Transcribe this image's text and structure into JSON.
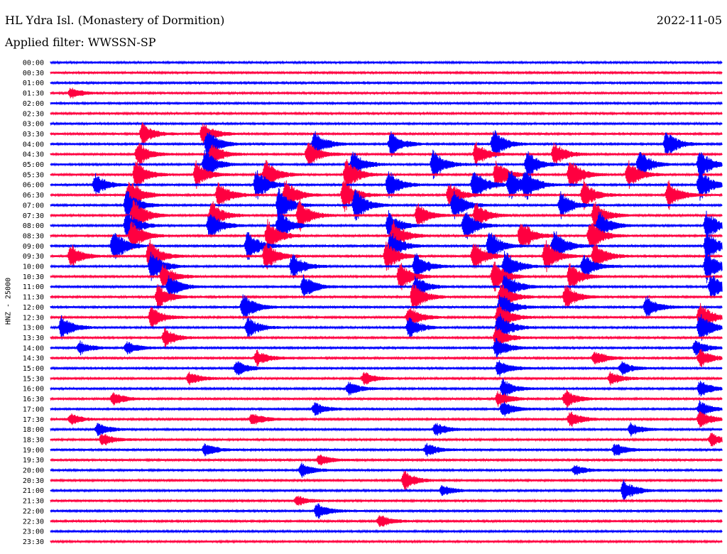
{
  "header": {
    "station": "HL Ydra Isl. (Monastery of Dormition)",
    "date": "2022-11-05",
    "filter": "Applied filter: WWSSN-SP",
    "channel": "HNZ - 25000"
  },
  "chart_data": {
    "type": "line",
    "title": "HL Ydra Isl. (Monastery of Dormition)",
    "ylabel": "HNZ - 25000",
    "x_unit": "minutes within 30-minute trace (0-30)",
    "colors": [
      "#0000ff",
      "#ff0040"
    ],
    "grid": false,
    "series": [
      {
        "name": "00:00",
        "events": []
      },
      {
        "name": "00:30",
        "events": []
      },
      {
        "name": "01:00",
        "events": []
      },
      {
        "name": "01:30",
        "events": [
          {
            "x": 0.9,
            "peak": -8
          }
        ]
      },
      {
        "name": "02:00",
        "events": []
      },
      {
        "name": "02:30",
        "events": []
      },
      {
        "name": "03:00",
        "events": []
      },
      {
        "name": "03:30",
        "events": [
          {
            "x": 4.1,
            "peak": 16
          },
          {
            "x": 6.8,
            "peak": 18
          }
        ]
      },
      {
        "name": "04:00",
        "events": [
          {
            "x": 7.0,
            "peak": 22
          },
          {
            "x": 11.8,
            "peak": 20
          },
          {
            "x": 15.2,
            "peak": 18
          },
          {
            "x": 19.8,
            "peak": 22
          },
          {
            "x": 27.5,
            "peak": 20
          }
        ]
      },
      {
        "name": "04:30",
        "events": [
          {
            "x": 3.9,
            "peak": 18
          },
          {
            "x": 7.2,
            "peak": 16
          },
          {
            "x": 11.5,
            "peak": 20
          },
          {
            "x": 19.0,
            "peak": 18
          },
          {
            "x": 22.5,
            "peak": 18
          }
        ]
      },
      {
        "name": "05:00",
        "events": [
          {
            "x": 6.9,
            "peak": 22
          },
          {
            "x": 13.5,
            "peak": 20
          },
          {
            "x": 17.1,
            "peak": 22
          },
          {
            "x": 21.3,
            "peak": 20
          },
          {
            "x": 26.3,
            "peak": 22
          },
          {
            "x": 29.0,
            "peak": 22
          }
        ]
      },
      {
        "name": "05:30",
        "events": [
          {
            "x": 3.8,
            "peak": 22
          },
          {
            "x": 6.5,
            "peak": 20
          },
          {
            "x": 9.6,
            "peak": 22
          },
          {
            "x": 13.2,
            "peak": 24
          },
          {
            "x": 19.9,
            "peak": 22
          },
          {
            "x": 23.2,
            "peak": 24
          },
          {
            "x": 25.8,
            "peak": 22
          }
        ]
      },
      {
        "name": "06:00",
        "events": [
          {
            "x": 2.0,
            "peak": 16
          },
          {
            "x": 9.2,
            "peak": 24
          },
          {
            "x": 15.1,
            "peak": 22
          },
          {
            "x": 18.9,
            "peak": 26
          },
          {
            "x": 20.5,
            "peak": 24
          },
          {
            "x": 21.2,
            "peak": 22
          },
          {
            "x": 29.0,
            "peak": 24
          }
        ]
      },
      {
        "name": "06:30",
        "events": [
          {
            "x": 3.5,
            "peak": 26
          },
          {
            "x": 7.5,
            "peak": 22
          },
          {
            "x": 10.5,
            "peak": 24
          },
          {
            "x": 13.1,
            "peak": 26
          },
          {
            "x": 17.8,
            "peak": 20
          },
          {
            "x": 23.8,
            "peak": 22
          },
          {
            "x": 27.6,
            "peak": 22
          }
        ]
      },
      {
        "name": "07:00",
        "events": [
          {
            "x": 3.4,
            "peak": 24
          },
          {
            "x": 10.2,
            "peak": 24
          },
          {
            "x": 13.6,
            "peak": 26
          },
          {
            "x": 18.0,
            "peak": 22
          },
          {
            "x": 22.8,
            "peak": 20
          }
        ]
      },
      {
        "name": "07:30",
        "events": [
          {
            "x": 3.7,
            "peak": 26
          },
          {
            "x": 7.2,
            "peak": 22
          },
          {
            "x": 11.1,
            "peak": 24
          },
          {
            "x": 16.4,
            "peak": 18
          },
          {
            "x": 19.0,
            "peak": 20
          },
          {
            "x": 24.3,
            "peak": 22
          }
        ]
      },
      {
        "name": "08:00",
        "events": [
          {
            "x": 3.4,
            "peak": 24
          },
          {
            "x": 7.1,
            "peak": 22
          },
          {
            "x": 10.2,
            "peak": 24
          },
          {
            "x": 15.1,
            "peak": 22
          },
          {
            "x": 18.5,
            "peak": 24
          },
          {
            "x": 24.5,
            "peak": 22
          },
          {
            "x": 29.3,
            "peak": 22
          }
        ]
      },
      {
        "name": "08:30",
        "events": [
          {
            "x": 3.6,
            "peak": 24
          },
          {
            "x": 9.7,
            "peak": 24
          },
          {
            "x": 15.3,
            "peak": 24
          },
          {
            "x": 21.0,
            "peak": 26
          },
          {
            "x": 24.1,
            "peak": 24
          }
        ]
      },
      {
        "name": "09:00",
        "events": [
          {
            "x": 2.8,
            "peak": 26
          },
          {
            "x": 8.8,
            "peak": 24
          },
          {
            "x": 15.2,
            "peak": 22
          },
          {
            "x": 19.6,
            "peak": 24
          },
          {
            "x": 22.5,
            "peak": 26
          },
          {
            "x": 29.3,
            "peak": 24
          }
        ]
      },
      {
        "name": "09:30",
        "events": [
          {
            "x": 0.9,
            "peak": 18
          },
          {
            "x": 4.4,
            "peak": 26
          },
          {
            "x": 9.6,
            "peak": 24
          },
          {
            "x": 15.0,
            "peak": 22
          },
          {
            "x": 18.9,
            "peak": 24
          },
          {
            "x": 22.1,
            "peak": 26
          },
          {
            "x": 24.3,
            "peak": 22
          }
        ]
      },
      {
        "name": "10:00",
        "events": [
          {
            "x": 4.5,
            "peak": 22
          },
          {
            "x": 10.8,
            "peak": 20
          },
          {
            "x": 16.3,
            "peak": 22
          },
          {
            "x": 20.3,
            "peak": 26
          },
          {
            "x": 23.8,
            "peak": 20
          },
          {
            "x": 29.3,
            "peak": 24
          }
        ]
      },
      {
        "name": "10:30",
        "events": [
          {
            "x": 5.0,
            "peak": 20
          },
          {
            "x": 15.6,
            "peak": 22
          },
          {
            "x": 19.8,
            "peak": 24
          },
          {
            "x": 23.2,
            "peak": 20
          }
        ]
      },
      {
        "name": "11:00",
        "events": [
          {
            "x": 5.3,
            "peak": 18
          },
          {
            "x": 11.3,
            "peak": 18
          },
          {
            "x": 16.3,
            "peak": 18
          },
          {
            "x": 20.3,
            "peak": 24
          },
          {
            "x": 29.5,
            "peak": 22
          }
        ]
      },
      {
        "name": "11:30",
        "events": [
          {
            "x": 4.8,
            "peak": 18
          },
          {
            "x": 16.2,
            "peak": 22
          },
          {
            "x": 20.1,
            "peak": 22
          },
          {
            "x": 23.0,
            "peak": 18
          }
        ]
      },
      {
        "name": "12:00",
        "events": [
          {
            "x": 8.6,
            "peak": 22
          },
          {
            "x": 20.1,
            "peak": 24
          },
          {
            "x": 26.6,
            "peak": 18
          }
        ]
      },
      {
        "name": "12:30",
        "events": [
          {
            "x": 4.5,
            "peak": 16
          },
          {
            "x": 16.0,
            "peak": 18
          },
          {
            "x": 20.0,
            "peak": 22
          },
          {
            "x": 29.0,
            "peak": 24
          }
        ]
      },
      {
        "name": "13:00",
        "events": [
          {
            "x": 0.5,
            "peak": 18
          },
          {
            "x": 8.8,
            "peak": 16
          },
          {
            "x": 16.0,
            "peak": 16
          },
          {
            "x": 20.0,
            "peak": 24
          },
          {
            "x": 29.0,
            "peak": 22
          }
        ]
      },
      {
        "name": "13:30",
        "events": [
          {
            "x": 5.1,
            "peak": 14
          },
          {
            "x": 19.9,
            "peak": 18
          }
        ]
      },
      {
        "name": "14:00",
        "events": [
          {
            "x": 1.3,
            "peak": 10
          },
          {
            "x": 3.4,
            "peak": 10
          },
          {
            "x": 19.9,
            "peak": 16
          },
          {
            "x": 28.8,
            "peak": 12
          }
        ]
      },
      {
        "name": "14:30",
        "events": [
          {
            "x": 9.2,
            "peak": 12
          },
          {
            "x": 24.3,
            "peak": 12
          },
          {
            "x": 29.0,
            "peak": 14
          }
        ]
      },
      {
        "name": "15:00",
        "events": [
          {
            "x": 8.3,
            "peak": 12
          },
          {
            "x": 20.0,
            "peak": 14
          },
          {
            "x": 25.5,
            "peak": 10
          }
        ]
      },
      {
        "name": "15:30",
        "events": [
          {
            "x": 6.2,
            "peak": 10
          },
          {
            "x": 14.0,
            "peak": 10
          },
          {
            "x": 25.0,
            "peak": 10
          }
        ]
      },
      {
        "name": "16:00",
        "events": [
          {
            "x": 13.3,
            "peak": 10
          },
          {
            "x": 20.2,
            "peak": 14
          },
          {
            "x": 29.0,
            "peak": 12
          }
        ]
      },
      {
        "name": "16:30",
        "events": [
          {
            "x": 2.8,
            "peak": 10
          },
          {
            "x": 20.0,
            "peak": 12
          },
          {
            "x": 23.0,
            "peak": 14
          }
        ]
      },
      {
        "name": "17:00",
        "events": [
          {
            "x": 11.8,
            "peak": 10
          },
          {
            "x": 20.2,
            "peak": 12
          },
          {
            "x": 29.0,
            "peak": 12
          }
        ]
      },
      {
        "name": "17:30",
        "events": [
          {
            "x": 0.9,
            "peak": 8
          },
          {
            "x": 9.0,
            "peak": 10
          },
          {
            "x": 23.2,
            "peak": 12
          },
          {
            "x": 29.0,
            "peak": 14
          }
        ]
      },
      {
        "name": "18:00",
        "events": [
          {
            "x": 2.1,
            "peak": 10
          },
          {
            "x": 17.2,
            "peak": 10
          },
          {
            "x": 25.9,
            "peak": 10
          }
        ]
      },
      {
        "name": "18:30",
        "events": [
          {
            "x": 2.3,
            "peak": 10
          },
          {
            "x": 29.5,
            "peak": 10
          }
        ]
      },
      {
        "name": "19:00",
        "events": [
          {
            "x": 6.9,
            "peak": 10
          },
          {
            "x": 16.8,
            "peak": 10
          },
          {
            "x": 25.2,
            "peak": 10
          }
        ]
      },
      {
        "name": "19:30",
        "events": [
          {
            "x": 12.0,
            "peak": 8
          }
        ]
      },
      {
        "name": "20:00",
        "events": [
          {
            "x": 11.2,
            "peak": 10
          },
          {
            "x": 23.4,
            "peak": 8
          }
        ]
      },
      {
        "name": "20:30",
        "events": [
          {
            "x": 15.8,
            "peak": 14
          }
        ]
      },
      {
        "name": "21:00",
        "events": [
          {
            "x": 17.5,
            "peak": 8
          },
          {
            "x": 25.6,
            "peak": 16
          }
        ]
      },
      {
        "name": "21:30",
        "events": [
          {
            "x": 11.0,
            "peak": 8
          }
        ]
      },
      {
        "name": "22:00",
        "events": [
          {
            "x": 11.9,
            "peak": 12
          }
        ]
      },
      {
        "name": "22:30",
        "events": [
          {
            "x": 14.7,
            "peak": 10
          }
        ]
      },
      {
        "name": "23:00",
        "events": []
      },
      {
        "name": "23:30",
        "events": []
      }
    ]
  }
}
